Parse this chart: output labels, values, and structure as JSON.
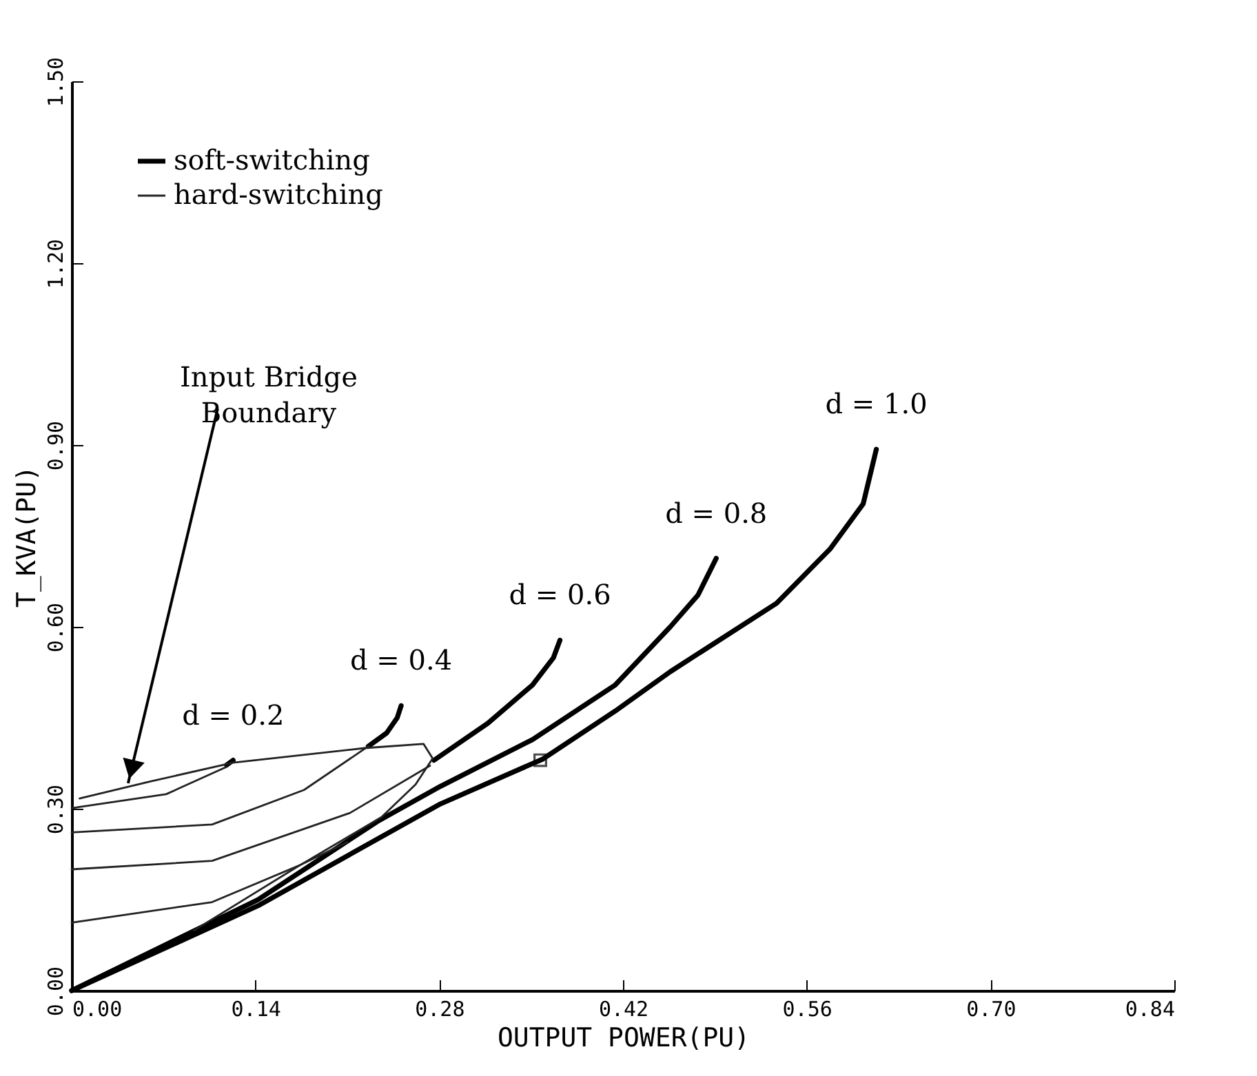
{
  "chart_data": {
    "type": "line",
    "xlabel": "OUTPUT POWER(PU)",
    "ylabel": "T_KVA(PU)",
    "xlim": [
      0,
      0.84
    ],
    "ylim": [
      0,
      1.5
    ],
    "xticks": [
      {
        "value": 0,
        "label": "0.00"
      },
      0.14,
      {
        "value": 0.28,
        "label": "0.28"
      },
      0.42,
      0.56,
      {
        "value": 0.7,
        "label": "0.70"
      },
      0.84
    ],
    "yticks": [
      {
        "value": 0,
        "label": "0.00"
      },
      {
        "value": 0.3,
        "label": "0.30"
      },
      {
        "value": 0.6,
        "label": "0.60"
      },
      {
        "value": 0.9,
        "label": "0.90"
      },
      {
        "value": 1.2,
        "label": "1.20"
      },
      {
        "value": 1.5,
        "label": "1.50"
      }
    ],
    "grid": false,
    "legend": "top left",
    "line_style": "solid",
    "series": [
      {
        "name": "soft-switching",
        "color": "#000000",
        "x": [
          0.118,
          0.123,
          null,
          0.226,
          0.24,
          0.248,
          0.251,
          null,
          0.276,
          0.317,
          0.351,
          0.367,
          0.372,
          null,
          0,
          0.142,
          0.233,
          0.281,
          0.351,
          0.414,
          0.456,
          0.477,
          0.491,
          null,
          0,
          0.142,
          0.281,
          0.359,
          0.414,
          0.456,
          0.537,
          0.578,
          0.603,
          0.613
        ],
        "values": [
          0.372,
          0.38,
          null,
          0.403,
          0.425,
          0.45,
          0.47,
          null,
          0.38,
          0.441,
          0.504,
          0.549,
          0.578,
          null,
          0,
          0.15,
          0.279,
          0.337,
          0.414,
          0.504,
          0.6,
          0.652,
          0.713,
          null,
          0,
          0.14,
          0.308,
          0.382,
          0.461,
          0.526,
          0.639,
          0.729,
          0.803,
          0.893
        ]
      },
      {
        "name": "hard-switching",
        "color": "#222222",
        "x": [
          0.006,
          0.06,
          0.123,
          0.223,
          0.268,
          0.275,
          0.262,
          0.236,
          0.174,
          0.093,
          null,
          0,
          0.072,
          0.118,
          null,
          0,
          0.107,
          0.177,
          0.226,
          null,
          0,
          0.107,
          0.212,
          0.273,
          null,
          0,
          0.107,
          0.174,
          0.21
        ],
        "values": [
          0.317,
          0.345,
          0.376,
          0.4,
          0.407,
          0.383,
          0.34,
          0.286,
          0.207,
          0.099,
          null,
          0.301,
          0.324,
          0.369,
          null,
          0.261,
          0.274,
          0.331,
          0.403,
          null,
          0.2,
          0.214,
          0.293,
          0.371,
          null,
          0.112,
          0.146,
          0.207,
          0.245
        ]
      },
      {
        "type": "scatter",
        "marker": "square",
        "color": "#000000",
        "x": [
          0.357
        ],
        "values": [
          0.38
        ]
      }
    ],
    "annotations": [
      {
        "text": "Input Bridge Boundary",
        "x": 0.043,
        "y": 0.342
      },
      {
        "text": "d = 0.2",
        "x": 0.123,
        "y": 0.38
      },
      {
        "text": "d = 0.4",
        "x": 0.251,
        "y": 0.47
      },
      {
        "text": "d = 0.6",
        "x": 0.372,
        "y": 0.578
      },
      {
        "text": "d = 0.8",
        "x": 0.491,
        "y": 0.713
      },
      {
        "text": "d = 1.0",
        "x": 0.613,
        "y": 0.893
      }
    ]
  }
}
